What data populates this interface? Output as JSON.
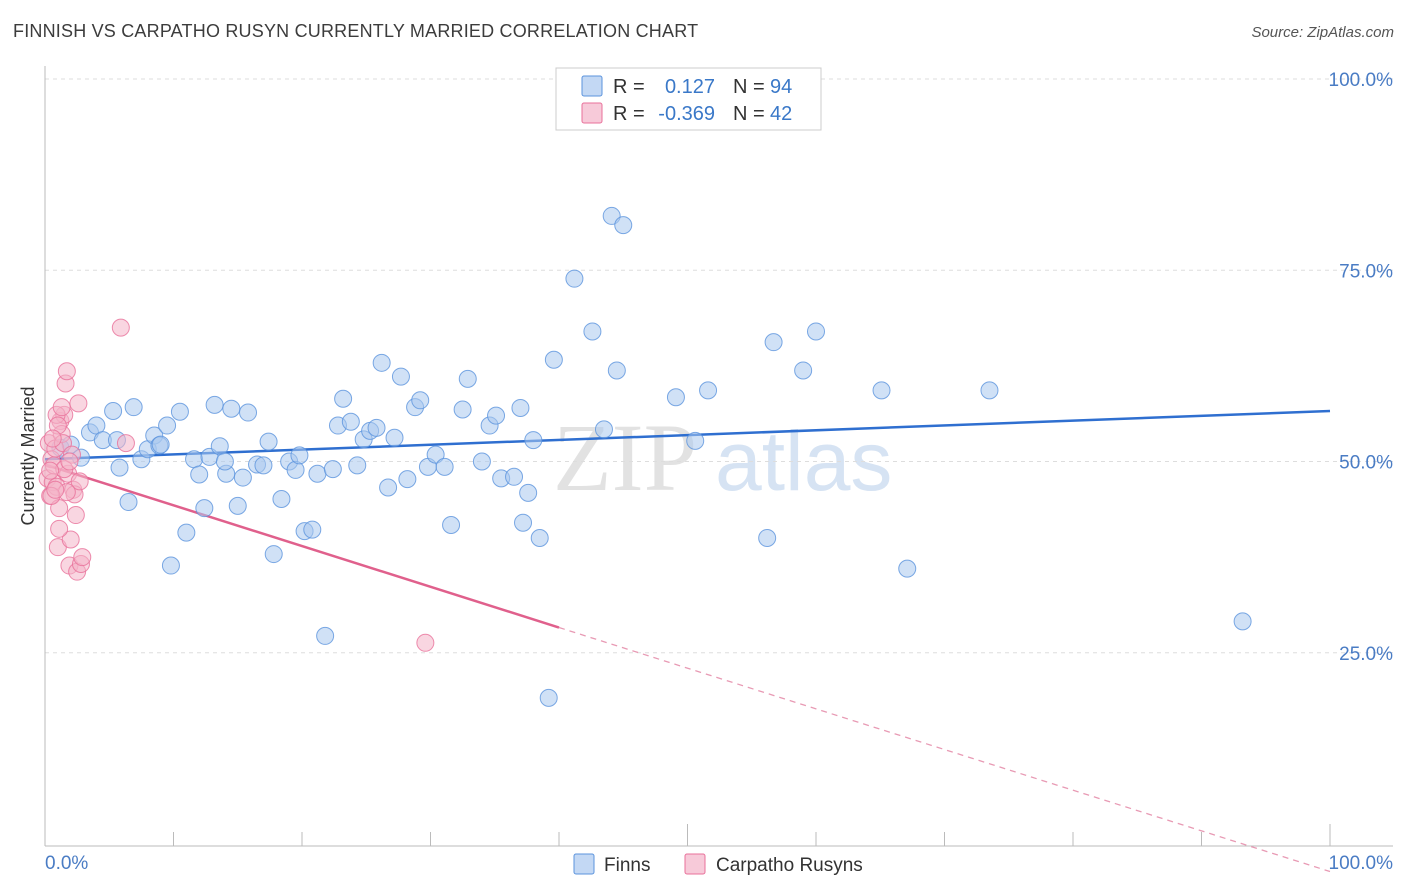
{
  "title": "FINNISH VS CARPATHO RUSYN CURRENTLY MARRIED CORRELATION CHART",
  "source": "Source: ZipAtlas.com",
  "watermark": {
    "zip": "ZIP",
    "atlas": "atlas"
  },
  "colors": {
    "finns": "#5b93dd",
    "finns_fill": "#a9c8ef",
    "rusyns": "#e8709a",
    "rusyns_fill": "#f4b4c9",
    "axis_text": "#4a7cc4",
    "grid": "#dddddd"
  },
  "legend": {
    "r_label": "R =",
    "n_label": "N =",
    "rows": [
      {
        "series": "finns",
        "r": "0.127",
        "n": "94"
      },
      {
        "series": "rusyns",
        "r": "-0.369",
        "n": "42"
      }
    ]
  },
  "bottom_legend": {
    "finns": "Finns",
    "rusyns": "Carpatho Rusyns"
  },
  "chart_data": {
    "type": "scatter",
    "ylabel": "Currently Married",
    "x_ticks": [
      "0.0%",
      "100.0%"
    ],
    "y_ticks": [
      "25.0%",
      "50.0%",
      "75.0%",
      "100.0%"
    ],
    "xlim": [
      0,
      100
    ],
    "ylim": [
      0,
      100
    ],
    "grid": true,
    "legend_position": "top-center",
    "series": [
      {
        "name": "Finns",
        "trend": {
          "x": [
            0,
            100
          ],
          "y": [
            50.3,
            56.6
          ]
        },
        "points": [
          [
            1.2,
            51.8
          ],
          [
            2.0,
            52.2
          ],
          [
            2.8,
            50.5
          ],
          [
            3.5,
            53.8
          ],
          [
            4.0,
            54.7
          ],
          [
            4.5,
            52.8
          ],
          [
            5.3,
            56.6
          ],
          [
            5.8,
            49.2
          ],
          [
            6.5,
            44.7
          ],
          [
            6.9,
            57.1
          ],
          [
            7.5,
            50.3
          ],
          [
            8.0,
            51.6
          ],
          [
            8.5,
            53.4
          ],
          [
            8.9,
            52.1
          ],
          [
            9.5,
            54.7
          ],
          [
            9.8,
            36.4
          ],
          [
            10.5,
            56.5
          ],
          [
            11.0,
            40.7
          ],
          [
            11.6,
            50.3
          ],
          [
            12.0,
            48.3
          ],
          [
            12.4,
            43.9
          ],
          [
            12.8,
            50.6
          ],
          [
            13.2,
            57.4
          ],
          [
            13.6,
            52.0
          ],
          [
            14.1,
            48.4
          ],
          [
            14.5,
            56.9
          ],
          [
            15.0,
            44.2
          ],
          [
            15.4,
            47.9
          ],
          [
            15.8,
            56.4
          ],
          [
            16.5,
            49.6
          ],
          [
            17.0,
            49.5
          ],
          [
            17.4,
            52.6
          ],
          [
            17.8,
            37.9
          ],
          [
            18.4,
            45.1
          ],
          [
            19.0,
            50.0
          ],
          [
            19.5,
            48.9
          ],
          [
            20.2,
            40.9
          ],
          [
            20.8,
            41.1
          ],
          [
            21.2,
            48.4
          ],
          [
            21.8,
            27.2
          ],
          [
            22.4,
            49.0
          ],
          [
            22.8,
            54.7
          ],
          [
            23.2,
            58.2
          ],
          [
            23.8,
            55.2
          ],
          [
            24.3,
            49.5
          ],
          [
            24.8,
            52.9
          ],
          [
            25.3,
            54.0
          ],
          [
            25.8,
            54.4
          ],
          [
            26.2,
            62.9
          ],
          [
            26.7,
            46.6
          ],
          [
            27.2,
            53.1
          ],
          [
            27.7,
            61.1
          ],
          [
            28.2,
            47.7
          ],
          [
            28.8,
            57.1
          ],
          [
            29.2,
            58.0
          ],
          [
            29.8,
            49.3
          ],
          [
            30.4,
            50.9
          ],
          [
            31.1,
            49.3
          ],
          [
            31.6,
            41.7
          ],
          [
            32.5,
            56.8
          ],
          [
            32.9,
            60.8
          ],
          [
            34.0,
            50.0
          ],
          [
            34.6,
            54.7
          ],
          [
            35.1,
            56.0
          ],
          [
            35.5,
            47.8
          ],
          [
            37.0,
            57.0
          ],
          [
            37.6,
            45.9
          ],
          [
            37.2,
            42.0
          ],
          [
            38.0,
            52.8
          ],
          [
            38.5,
            40.0
          ],
          [
            39.2,
            19.1
          ],
          [
            39.6,
            63.3
          ],
          [
            41.2,
            73.9
          ],
          [
            42.6,
            67.0
          ],
          [
            43.5,
            54.2
          ],
          [
            44.1,
            82.1
          ],
          [
            44.5,
            61.9
          ],
          [
            45.0,
            80.9
          ],
          [
            49.1,
            58.4
          ],
          [
            50.6,
            52.7
          ],
          [
            51.6,
            59.3
          ],
          [
            56.2,
            40.0
          ],
          [
            56.7,
            65.6
          ],
          [
            59.0,
            61.9
          ],
          [
            60.0,
            67.0
          ],
          [
            65.1,
            59.3
          ],
          [
            67.1,
            36.0
          ],
          [
            73.5,
            59.3
          ],
          [
            93.2,
            29.1
          ],
          [
            9.0,
            52.2
          ],
          [
            5.6,
            52.8
          ],
          [
            14.0,
            50.0
          ],
          [
            19.8,
            50.8
          ],
          [
            36.5,
            48.0
          ]
        ]
      },
      {
        "name": "Carpatho Rusyns",
        "trend": {
          "x": [
            0,
            40.0
          ],
          "y": [
            49.6,
            28.3
          ]
        },
        "trend_dashed": {
          "x": [
            40.0,
            100
          ],
          "y": [
            28.3,
            -3.6
          ]
        },
        "points": [
          [
            0.2,
            47.8
          ],
          [
            0.3,
            52.4
          ],
          [
            0.4,
            45.5
          ],
          [
            0.5,
            50.3
          ],
          [
            0.6,
            47.3
          ],
          [
            0.7,
            49.5
          ],
          [
            0.8,
            51.7
          ],
          [
            0.9,
            46.7
          ],
          [
            1.0,
            38.8
          ],
          [
            1.1,
            43.9
          ],
          [
            1.2,
            55.3
          ],
          [
            1.3,
            53.6
          ],
          [
            1.4,
            52.4
          ],
          [
            1.5,
            56.1
          ],
          [
            1.6,
            60.2
          ],
          [
            1.7,
            61.8
          ],
          [
            1.8,
            48.4
          ],
          [
            1.9,
            36.4
          ],
          [
            2.0,
            39.8
          ],
          [
            2.1,
            50.9
          ],
          [
            2.2,
            46.3
          ],
          [
            2.3,
            45.7
          ],
          [
            2.4,
            43.0
          ],
          [
            2.5,
            35.6
          ],
          [
            2.6,
            57.6
          ],
          [
            2.7,
            47.4
          ],
          [
            2.8,
            36.6
          ],
          [
            2.9,
            37.5
          ],
          [
            0.9,
            56.1
          ],
          [
            1.0,
            54.7
          ],
          [
            1.3,
            57.1
          ],
          [
            1.5,
            49.0
          ],
          [
            1.7,
            46.0
          ],
          [
            0.5,
            45.5
          ],
          [
            0.8,
            46.3
          ],
          [
            6.3,
            52.4
          ],
          [
            5.9,
            67.5
          ],
          [
            29.6,
            26.3
          ],
          [
            0.6,
            53.0
          ],
          [
            1.1,
            41.2
          ],
          [
            1.9,
            50.0
          ],
          [
            0.4,
            48.8
          ]
        ]
      }
    ]
  }
}
